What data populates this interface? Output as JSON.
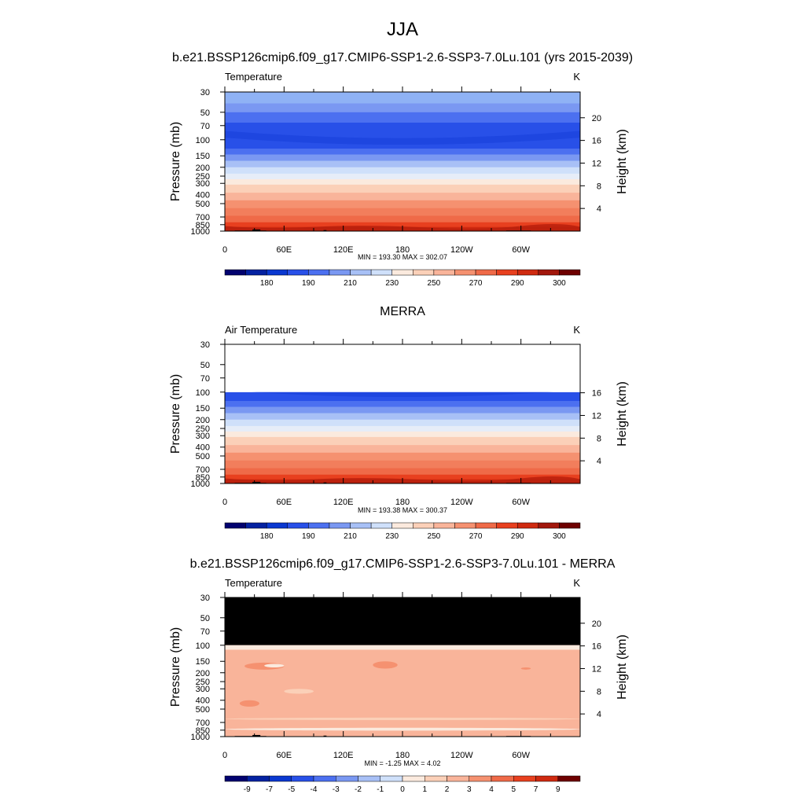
{
  "figure": {
    "title": "JJA",
    "subtitle": "b.e21.BSSP126cmip6.f09_g17.CMIP6-SSP1-2.6-SSP3-7.0Lu.101 (yrs 2015-2039)"
  },
  "chart_data": [
    {
      "type": "heatmap",
      "panel_title": "",
      "left_title": "Temperature",
      "units": "K",
      "ylabel": "Pressure (mb)",
      "ylabel_right": "Height (km)",
      "x_ticks": [
        "0",
        "60E",
        "120E",
        "180",
        "120W",
        "60W"
      ],
      "x_tick_values": [
        0,
        60,
        120,
        180,
        240,
        300
      ],
      "xlim": [
        0,
        360
      ],
      "y_ticks": [
        "30",
        "50",
        "70",
        "100",
        "150",
        "200",
        "250",
        "300",
        "400",
        "500",
        "700",
        "850",
        "1000"
      ],
      "y_tick_values": [
        30,
        50,
        70,
        100,
        150,
        200,
        250,
        300,
        400,
        500,
        700,
        850,
        1000
      ],
      "ylim": [
        30,
        1000
      ],
      "y_scale": "log-pressure",
      "height_ticks": [
        "4",
        "8",
        "12",
        "16",
        "20"
      ],
      "height_tick_values": [
        4,
        8,
        12,
        16,
        20
      ],
      "minmax": "MIN = 193.30  MAX = 302.07",
      "min": 193.3,
      "max": 302.07,
      "field": "full",
      "colorbar": {
        "labels": [
          "180",
          "190",
          "210",
          "230",
          "250",
          "270",
          "290",
          "300"
        ],
        "colors": [
          "#02026f",
          "#0422a1",
          "#0a38d0",
          "#2850e8",
          "#4c70f0",
          "#7a98f2",
          "#a8c0f6",
          "#cfe0fa",
          "#fbeade",
          "#fbd0b8",
          "#f9b49a",
          "#f59170",
          "#ef6a48",
          "#e8401f",
          "#cf2a10",
          "#a2170c",
          "#6e0000"
        ]
      }
    },
    {
      "type": "heatmap",
      "panel_title": "MERRA",
      "left_title": "Air Temperature",
      "units": "K",
      "ylabel": "Pressure (mb)",
      "ylabel_right": "Height (km)",
      "x_ticks": [
        "0",
        "60E",
        "120E",
        "180",
        "120W",
        "60W"
      ],
      "x_tick_values": [
        0,
        60,
        120,
        180,
        240,
        300
      ],
      "xlim": [
        0,
        360
      ],
      "y_ticks": [
        "30",
        "50",
        "70",
        "100",
        "150",
        "200",
        "250",
        "300",
        "400",
        "500",
        "700",
        "850",
        "1000"
      ],
      "y_tick_values": [
        30,
        50,
        70,
        100,
        150,
        200,
        250,
        300,
        400,
        500,
        700,
        850,
        1000
      ],
      "ylim": [
        30,
        1000
      ],
      "y_scale": "log-pressure",
      "height_ticks": [
        "4",
        "8",
        "12",
        "16"
      ],
      "height_tick_values": [
        4,
        8,
        12,
        16
      ],
      "minmax": "MIN = 193.38  MAX = 300.37",
      "min": 193.38,
      "max": 300.37,
      "field": "obs",
      "colorbar": {
        "labels": [
          "180",
          "190",
          "210",
          "230",
          "250",
          "270",
          "290",
          "300"
        ],
        "colors": [
          "#02026f",
          "#0422a1",
          "#0a38d0",
          "#2850e8",
          "#4c70f0",
          "#7a98f2",
          "#a8c0f6",
          "#cfe0fa",
          "#fbeade",
          "#fbd0b8",
          "#f9b49a",
          "#f59170",
          "#ef6a48",
          "#e8401f",
          "#cf2a10",
          "#a2170c",
          "#6e0000"
        ]
      }
    },
    {
      "type": "heatmap",
      "panel_title": "b.e21.BSSP126cmip6.f09_g17.CMIP6-SSP1-2.6-SSP3-7.0Lu.101 - MERRA",
      "left_title": "Temperature",
      "units": "K",
      "ylabel": "Pressure (mb)",
      "ylabel_right": "Height (km)",
      "x_ticks": [
        "0",
        "60E",
        "120E",
        "180",
        "120W",
        "60W"
      ],
      "x_tick_values": [
        0,
        60,
        120,
        180,
        240,
        300
      ],
      "xlim": [
        0,
        360
      ],
      "y_ticks": [
        "30",
        "50",
        "70",
        "100",
        "150",
        "200",
        "250",
        "300",
        "400",
        "500",
        "700",
        "850",
        "1000"
      ],
      "y_tick_values": [
        30,
        50,
        70,
        100,
        150,
        200,
        250,
        300,
        400,
        500,
        700,
        850,
        1000
      ],
      "ylim": [
        30,
        1000
      ],
      "y_scale": "log-pressure",
      "height_ticks": [
        "4",
        "8",
        "12",
        "16",
        "20"
      ],
      "height_tick_values": [
        4,
        8,
        12,
        16,
        20
      ],
      "minmax": "MIN =  -1.25  MAX =   4.02",
      "min": -1.25,
      "max": 4.02,
      "field": "diff",
      "colorbar": {
        "labels": [
          "-9",
          "-7",
          "-5",
          "-4",
          "-3",
          "-2",
          "-1",
          "0",
          "1",
          "2",
          "3",
          "4",
          "5",
          "7",
          "9"
        ],
        "colors": [
          "#02026f",
          "#0422a1",
          "#0a38d0",
          "#2850e8",
          "#4c70f0",
          "#7a98f2",
          "#a8c0f6",
          "#cfe0fa",
          "#fbeade",
          "#fbd0b8",
          "#f9b49a",
          "#f59170",
          "#ef6a48",
          "#e8401f",
          "#cf2a10",
          "#6e0000"
        ]
      }
    }
  ]
}
